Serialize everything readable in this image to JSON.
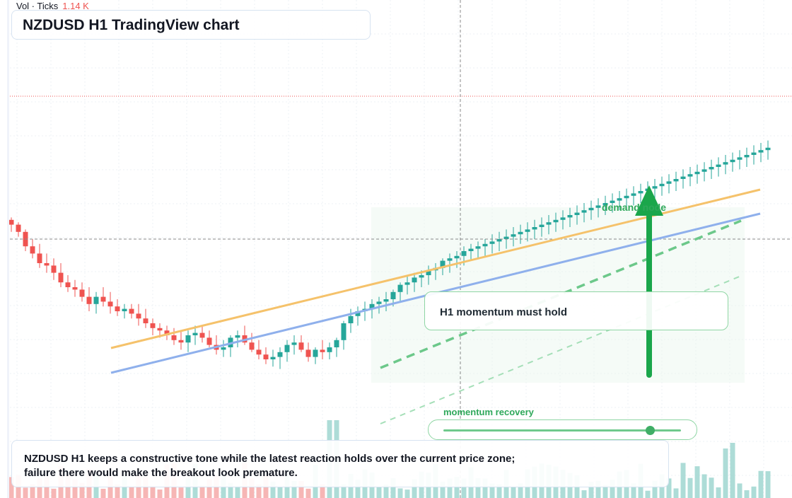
{
  "header": {
    "vol_label": "Vol · Ticks",
    "vol_value": "1.14 K"
  },
  "title": "NZDUSD H1 TradingView chart",
  "caption": "NZDUSD H1 keeps a constructive tone while the latest reaction holds over the current price zone; failure there would make the breakout look premature.",
  "annotations": {
    "callout": "H1 momentum must hold",
    "zone_label": "demand node",
    "momentum_label": "momentum recovery",
    "momentum_level": 0.87
  },
  "colors": {
    "up": "#26a69a",
    "down": "#ef5350",
    "ma_fast": "#f5c26b",
    "ma_slow": "#8fb0ec",
    "accent": "#1aa64b",
    "price_line": "#ef5350"
  },
  "chart_data": {
    "type": "candlestick",
    "title": "NZDUSD H1 TradingView chart",
    "bars": 108,
    "price_range": [
      0,
      100
    ],
    "levels": {
      "last_price": 79,
      "crosshair_price": 47
    },
    "candles": [
      [
        8,
        9,
        3,
        6
      ],
      [
        6,
        7,
        1,
        3
      ],
      [
        3,
        4,
        -5,
        -3
      ],
      [
        -3,
        0,
        -8,
        -6
      ],
      [
        -6,
        -2,
        -12,
        -10
      ],
      [
        -10,
        -6,
        -14,
        -11
      ],
      [
        -11,
        -8,
        -17,
        -14
      ],
      [
        -14,
        -10,
        -20,
        -18
      ],
      [
        -18,
        -15,
        -22,
        -20
      ],
      [
        -20,
        -17,
        -24,
        -21
      ],
      [
        -21,
        -18,
        -26,
        -24
      ],
      [
        -24,
        -20,
        -30,
        -27
      ],
      [
        -27,
        -22,
        -31,
        -24
      ],
      [
        -24,
        -20,
        -28,
        -26
      ],
      [
        -26,
        -22,
        -31,
        -28
      ],
      [
        -28,
        -25,
        -32,
        -30
      ],
      [
        -30,
        -27,
        -33,
        -29
      ],
      [
        -29,
        -27,
        -33,
        -31
      ],
      [
        -31,
        -27,
        -36,
        -33
      ],
      [
        -33,
        -29,
        -37,
        -35
      ],
      [
        -35,
        -33,
        -40,
        -37
      ],
      [
        -37,
        -35,
        -41,
        -38
      ],
      [
        -38,
        -36,
        -42,
        -40
      ],
      [
        -40,
        -37,
        -44,
        -42
      ],
      [
        -42,
        -38,
        -46,
        -43
      ],
      [
        -43,
        -38,
        -47,
        -40
      ],
      [
        -40,
        -36,
        -44,
        -39
      ],
      [
        -39,
        -36,
        -43,
        -41
      ],
      [
        -41,
        -38,
        -45,
        -44
      ],
      [
        -44,
        -40,
        -48,
        -46
      ],
      [
        -46,
        -42,
        -49,
        -45
      ],
      [
        -45,
        -40,
        -49,
        -41
      ],
      [
        -41,
        -38,
        -45,
        -40
      ],
      [
        -40,
        -36,
        -44,
        -43
      ],
      [
        -43,
        -39,
        -47,
        -46
      ],
      [
        -46,
        -42,
        -50,
        -48
      ],
      [
        -48,
        -45,
        -52,
        -50
      ],
      [
        -50,
        -46,
        -53,
        -49
      ],
      [
        -49,
        -45,
        -54,
        -47
      ],
      [
        -47,
        -42,
        -51,
        -44
      ],
      [
        -44,
        -40,
        -48,
        -43
      ],
      [
        -43,
        -40,
        -47,
        -46
      ],
      [
        -46,
        -43,
        -51,
        -49
      ],
      [
        -49,
        -45,
        -52,
        -46
      ],
      [
        -46,
        -42,
        -50,
        -47
      ],
      [
        -47,
        -43,
        -50,
        -45
      ],
      [
        -45,
        -41,
        -49,
        -42
      ],
      [
        -42,
        -34,
        -46,
        -35
      ],
      [
        -35,
        -29,
        -39,
        -32
      ],
      [
        -32,
        -28,
        -36,
        -30
      ],
      [
        -30,
        -26,
        -34,
        -29
      ],
      [
        -29,
        -25,
        -33,
        -27
      ],
      [
        -27,
        -24,
        -31,
        -26
      ],
      [
        -26,
        -22,
        -30,
        -25
      ],
      [
        -25,
        -21,
        -28,
        -22
      ],
      [
        -22,
        -18,
        -26,
        -19
      ],
      [
        -19,
        -15,
        -23,
        -18
      ],
      [
        -18,
        -14,
        -22,
        -16
      ],
      [
        -16,
        -13,
        -20,
        -15
      ],
      [
        -15,
        -11,
        -19,
        -13
      ],
      [
        -13,
        -10,
        -17,
        -12
      ],
      [
        -12,
        -8,
        -15,
        -9
      ],
      [
        -9,
        -6,
        -14,
        -8
      ],
      [
        -8,
        -5,
        -12,
        -7
      ],
      [
        -7,
        -3,
        -11,
        -5
      ],
      [
        -5,
        -2,
        -9,
        -4
      ],
      [
        -4,
        -1,
        -8,
        -3
      ],
      [
        -3,
        0,
        -7,
        -2
      ],
      [
        -2,
        2,
        -6,
        -1
      ],
      [
        -1,
        3,
        -5,
        0
      ],
      [
        0,
        4,
        -4,
        1
      ],
      [
        1,
        5,
        -3,
        2
      ],
      [
        2,
        6,
        -2,
        3
      ],
      [
        3,
        7,
        -1,
        4
      ],
      [
        4,
        8,
        0,
        5
      ],
      [
        5,
        9,
        1,
        6
      ],
      [
        6,
        10,
        2,
        7
      ],
      [
        7,
        11,
        3,
        8
      ],
      [
        8,
        12,
        4,
        9
      ],
      [
        9,
        13,
        5,
        10
      ],
      [
        10,
        14,
        6,
        11
      ],
      [
        11,
        15,
        7,
        12
      ],
      [
        12,
        16,
        8,
        13
      ],
      [
        13,
        17,
        9,
        14
      ],
      [
        14,
        18,
        10,
        15
      ],
      [
        15,
        19,
        11,
        16
      ],
      [
        16,
        20,
        12,
        17
      ],
      [
        17,
        21,
        13,
        18
      ],
      [
        18,
        22,
        14,
        19
      ],
      [
        19,
        23,
        15,
        20
      ],
      [
        20,
        24,
        16,
        21
      ],
      [
        21,
        25,
        17,
        22
      ],
      [
        22,
        26,
        18,
        23
      ],
      [
        23,
        27,
        19,
        24
      ],
      [
        24,
        28,
        20,
        25
      ],
      [
        25,
        29,
        21,
        26
      ],
      [
        26,
        30,
        22,
        27
      ],
      [
        27,
        31,
        23,
        28
      ],
      [
        28,
        32,
        24,
        29
      ],
      [
        29,
        33,
        25,
        30
      ],
      [
        30,
        34,
        26,
        31
      ],
      [
        31,
        35,
        27,
        32
      ],
      [
        32,
        36,
        28,
        33
      ],
      [
        33,
        37,
        29,
        34
      ],
      [
        34,
        38,
        30,
        35
      ],
      [
        35,
        39,
        31,
        36
      ],
      [
        36,
        40,
        32,
        37
      ],
      [
        37,
        41,
        33,
        38
      ]
    ]
  }
}
